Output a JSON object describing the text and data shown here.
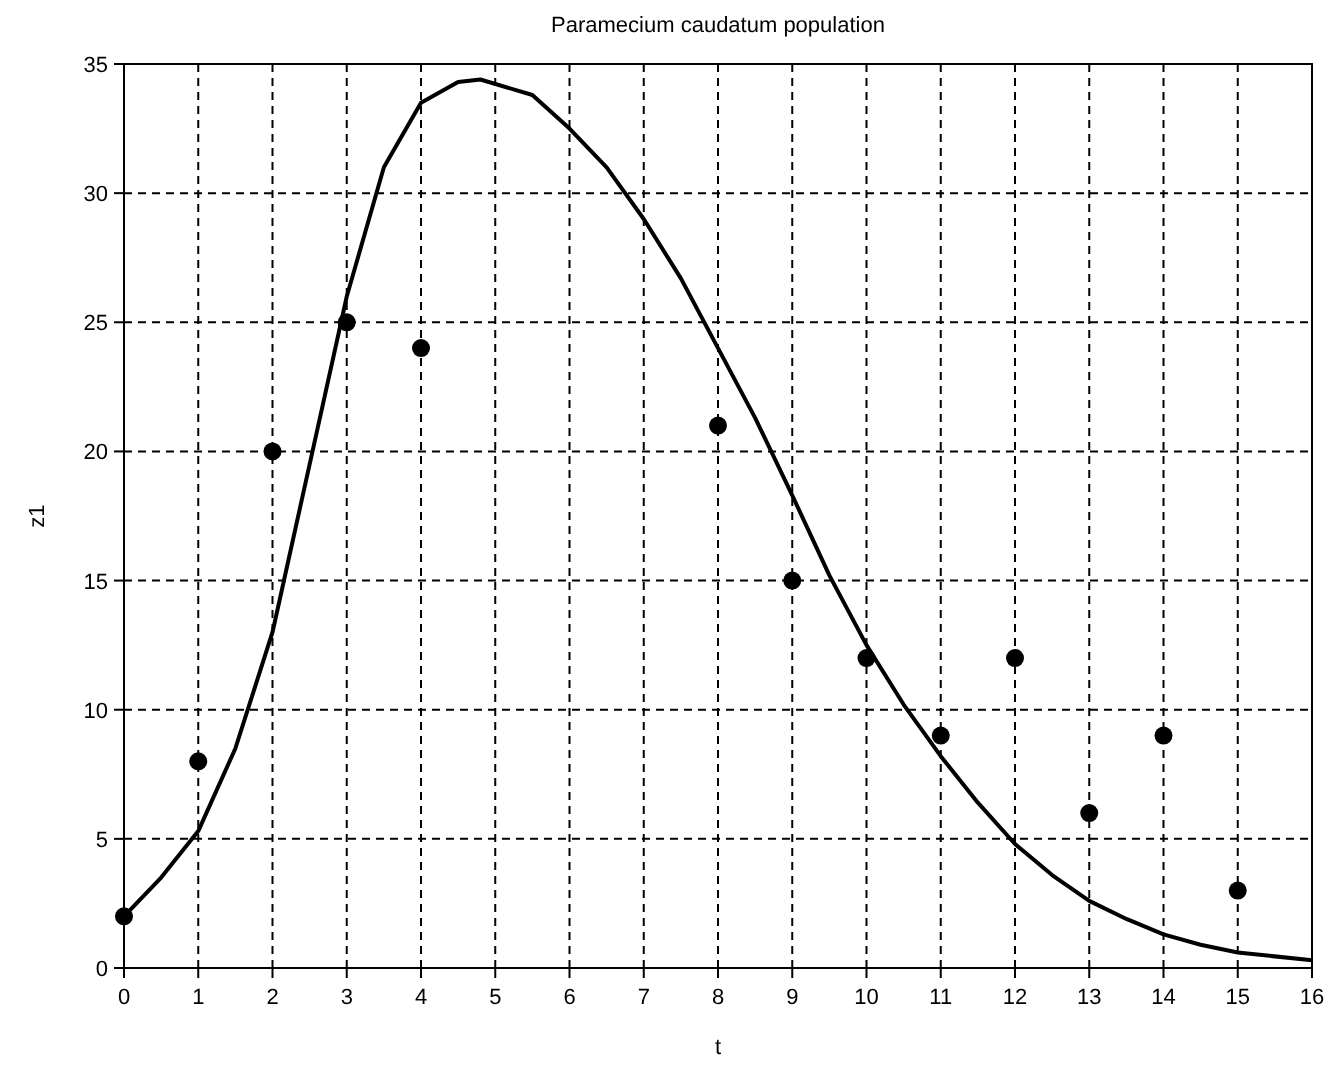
{
  "chart_data": {
    "type": "line",
    "title": "Paramecium caudatum population",
    "xlabel": "t",
    "ylabel": "z1",
    "xlim": [
      0,
      16
    ],
    "ylim": [
      0,
      35
    ],
    "xticks": [
      0,
      1,
      2,
      3,
      4,
      5,
      6,
      7,
      8,
      9,
      10,
      11,
      12,
      13,
      14,
      15,
      16
    ],
    "yticks": [
      0,
      5,
      10,
      15,
      20,
      25,
      30,
      35
    ],
    "grid": true,
    "series": [
      {
        "color": "#000000",
        "line_style": "solid",
        "marker": "none",
        "x": [
          0,
          0.5,
          1,
          1.5,
          2,
          2.5,
          3,
          3.5,
          4,
          4.5,
          4.8,
          5.5,
          6,
          6.5,
          7,
          7.5,
          8,
          8.5,
          9,
          9.5,
          10,
          10.5,
          11,
          11.5,
          12,
          12.5,
          13,
          13.5,
          14,
          14.5,
          15,
          16
        ],
        "values": [
          2,
          3.5,
          5.3,
          8.5,
          13,
          19.5,
          26,
          31,
          33.5,
          34.3,
          34.4,
          33.8,
          32.5,
          31,
          29,
          26.7,
          24,
          21.3,
          18.3,
          15.2,
          12.5,
          10.2,
          8.2,
          6.4,
          4.8,
          3.6,
          2.6,
          1.9,
          1.3,
          0.9,
          0.6,
          0.3
        ]
      },
      {
        "type": "scatter",
        "color": "#000000",
        "marker": "circle",
        "x": [
          0,
          1,
          2,
          3,
          4,
          8,
          9,
          10,
          11,
          12,
          13,
          14,
          15
        ],
        "values": [
          2,
          8,
          20,
          25,
          24,
          21,
          15,
          12,
          9,
          12,
          6,
          9,
          3
        ]
      }
    ]
  }
}
